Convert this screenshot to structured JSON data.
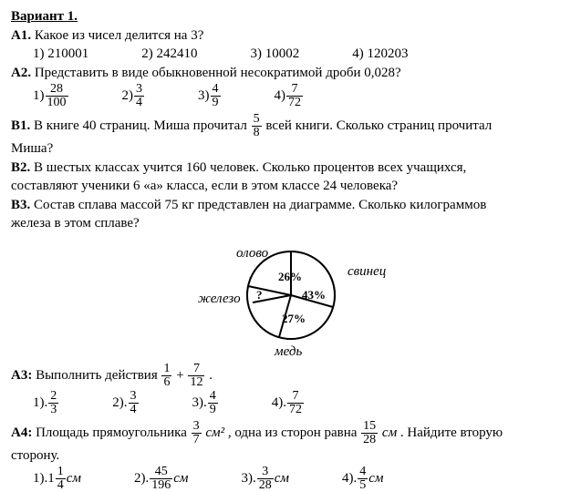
{
  "title": "Вариант 1.",
  "a1": {
    "label": "А1.",
    "text": "Какое из чисел делится на 3?",
    "opts": [
      "1)  210001",
      "2)  242410",
      "3)  10002",
      "4) 120203"
    ]
  },
  "a2": {
    "label": "А2.",
    "text": "Представить в виде обыкновенной несократимой дроби 0,028?",
    "opts": [
      {
        "pre": "1)",
        "n": "28",
        "d": "100"
      },
      {
        "pre": "2)",
        "n": "3",
        "d": "4"
      },
      {
        "pre": "3)",
        "n": "4",
        "d": "9"
      },
      {
        "pre": "4)",
        "n": "7",
        "d": "72"
      }
    ]
  },
  "b1": {
    "label": "В1.",
    "t1": "В книге 40 страниц. Миша прочитал",
    "frac": {
      "n": "5",
      "d": "8"
    },
    "t2": "всей книги. Сколько страниц прочитал",
    "t3": "Миша?"
  },
  "b2": {
    "label": "В2.",
    "t1": "В шестых классах учится 160 человек. Сколько процентов всех учащихся,",
    "t2": "составляют ученики 6 «а» класса, если в этом классе 24 человека?"
  },
  "b3": {
    "label": "В3.",
    "t1": "Состав сплава массой 75 кг представлен на диаграмме. Сколько килограммов",
    "t2": "железа в этом сплаве?"
  },
  "chart": {
    "labels": {
      "tin": "олово",
      "lead": "свинец",
      "iron": "железо",
      "copper": "медь"
    },
    "values": {
      "tin": "26%",
      "lead": "43%",
      "copper": "27%",
      "iron": "?"
    },
    "colors": {
      "tin": "#ffffff",
      "lead": "#ffffff",
      "copper": "#ffffff",
      "iron": "#ffffff",
      "stroke": "#000000"
    },
    "radius": 48
  },
  "a3": {
    "label": "А3:",
    "t1": "Выполнить действия",
    "f1": {
      "n": "1",
      "d": "6"
    },
    "plus": "+",
    "f2": {
      "n": "7",
      "d": "12"
    },
    "dot": ".",
    "opts": [
      {
        "pre": "1).",
        "n": "2",
        "d": "3"
      },
      {
        "pre": "2).",
        "n": "3",
        "d": "4"
      },
      {
        "pre": "3).",
        "n": "4",
        "d": "9"
      },
      {
        "pre": "4).",
        "n": "7",
        "d": "72"
      }
    ]
  },
  "a4": {
    "label": "А4:",
    "t1": "Площадь прямоугольника",
    "f1": {
      "n": "3",
      "d": "7"
    },
    "u1": "см²",
    "t2": ", одна из сторон равна",
    "f2": {
      "n": "15",
      "d": "28"
    },
    "u2": "см",
    "t3": ". Найдите вторую",
    "t4": "сторону.",
    "opts": [
      {
        "pre": "1).1",
        "n": "1",
        "d": "4",
        "suf": "см"
      },
      {
        "pre": "2).",
        "n": "45",
        "d": "196",
        "suf": "см"
      },
      {
        "pre": "3).",
        "n": "3",
        "d": "28",
        "suf": "см"
      },
      {
        "pre": "4).",
        "n": "4",
        "d": "5",
        "suf": "см"
      }
    ]
  }
}
